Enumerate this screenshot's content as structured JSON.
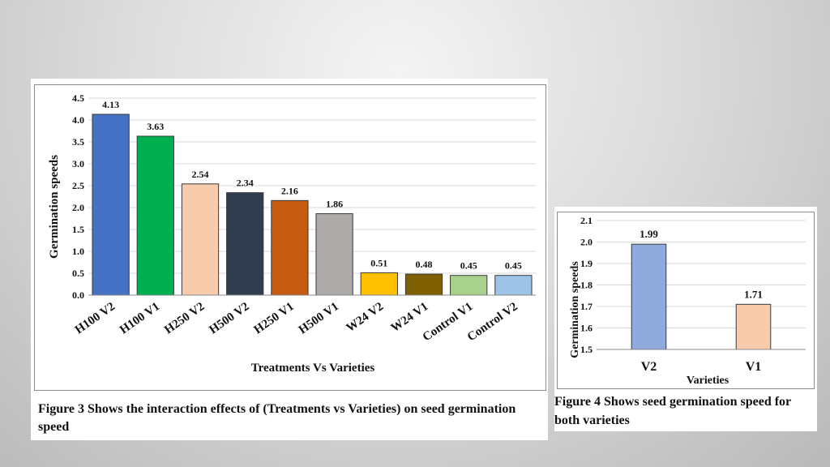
{
  "chart_data": [
    {
      "type": "bar",
      "categories": [
        "H100 V2",
        "H100 V1",
        "H250 V2",
        "H500 V2",
        "H250 V1",
        "H500 V1",
        "W24 V2",
        "W24 V1",
        "Control V1",
        "Control V2"
      ],
      "values": [
        4.13,
        3.63,
        2.54,
        2.34,
        2.16,
        1.86,
        0.51,
        0.48,
        0.45,
        0.45
      ],
      "data_labels": [
        "4.13",
        "3.63",
        "2.54",
        "2.34",
        "2.16",
        "1.86",
        "0.51",
        "0.48",
        "0.45",
        "0.45"
      ],
      "colors": [
        "#4472c4",
        "#00b050",
        "#f8cbad",
        "#2f3d4f",
        "#c55a11",
        "#aeaaaa",
        "#ffc000",
        "#7f6000",
        "#a9d18e",
        "#9dc3e6"
      ],
      "xlabel": "Treatments Vs Varieties",
      "ylabel": "Germination speeds",
      "ylim": [
        0,
        4.5
      ],
      "yticks": [
        "0.0",
        "0.5",
        "1.0",
        "1.5",
        "2.0",
        "2.5",
        "3.0",
        "3.5",
        "4.0",
        "4.5"
      ],
      "grid": true
    },
    {
      "type": "bar",
      "categories": [
        "V2",
        "V1"
      ],
      "values": [
        1.99,
        1.71
      ],
      "data_labels": [
        "1.99",
        "1.71"
      ],
      "colors": [
        "#8faadc",
        "#f8cbad"
      ],
      "xlabel": "Varieties",
      "ylabel": "Germination speeds",
      "ylim": [
        1.5,
        2.1
      ],
      "yticks": [
        "1.5",
        "1.6",
        "1.7",
        "1.8",
        "1.9",
        "2.0",
        "2.1"
      ],
      "grid": true
    }
  ],
  "captions": {
    "figure3": "Figure 3 Shows the interaction effects of (Treatments vs Varieties) on seed germination speed",
    "figure4": "Figure 4 Shows seed germination speed for both varieties"
  }
}
